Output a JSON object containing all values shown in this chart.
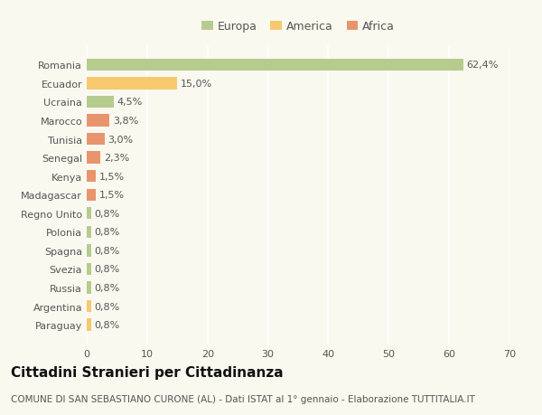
{
  "categories": [
    "Romania",
    "Ecuador",
    "Ucraina",
    "Marocco",
    "Tunisia",
    "Senegal",
    "Kenya",
    "Madagascar",
    "Regno Unito",
    "Polonia",
    "Spagna",
    "Svezia",
    "Russia",
    "Argentina",
    "Paraguay"
  ],
  "values": [
    62.4,
    15.0,
    4.5,
    3.8,
    3.0,
    2.3,
    1.5,
    1.5,
    0.8,
    0.8,
    0.8,
    0.8,
    0.8,
    0.8,
    0.8
  ],
  "labels": [
    "62,4%",
    "15,0%",
    "4,5%",
    "3,8%",
    "3,0%",
    "2,3%",
    "1,5%",
    "1,5%",
    "0,8%",
    "0,8%",
    "0,8%",
    "0,8%",
    "0,8%",
    "0,8%",
    "0,8%"
  ],
  "colors": [
    "#b5cc8e",
    "#f7c96e",
    "#b5cc8e",
    "#e8956d",
    "#e8956d",
    "#e8956d",
    "#e8956d",
    "#e8956d",
    "#b5cc8e",
    "#b5cc8e",
    "#b5cc8e",
    "#b5cc8e",
    "#b5cc8e",
    "#f7c96e",
    "#f7c96e"
  ],
  "legend_labels": [
    "Europa",
    "America",
    "Africa"
  ],
  "legend_colors": [
    "#b5cc8e",
    "#f7c96e",
    "#e8956d"
  ],
  "title": "Cittadini Stranieri per Cittadinanza",
  "subtitle": "COMUNE DI SAN SEBASTIANO CURONE (AL) - Dati ISTAT al 1° gennaio - Elaborazione TUTTITALIA.IT",
  "xlim": [
    0,
    70
  ],
  "xticks": [
    0,
    10,
    20,
    30,
    40,
    50,
    60,
    70
  ],
  "background_color": "#f9f9f0",
  "grid_color": "#ffffff",
  "bar_height": 0.65,
  "label_fontsize": 8,
  "tick_fontsize": 8,
  "legend_fontsize": 9,
  "title_fontsize": 11,
  "subtitle_fontsize": 7.5
}
